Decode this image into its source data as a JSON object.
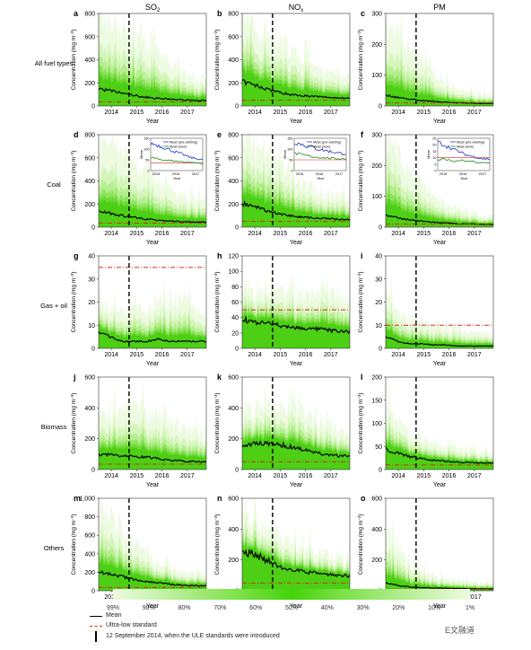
{
  "columns": [
    "SO",
    "NO",
    "PM"
  ],
  "column_subscript": "2",
  "column_subscript_x": "x",
  "rows": [
    "All fuel types",
    "Coal",
    "Gas + oil",
    "Biomass",
    "Others"
  ],
  "panel_letters": [
    "a",
    "b",
    "c",
    "d",
    "e",
    "f",
    "g",
    "h",
    "i",
    "j",
    "k",
    "l",
    "m",
    "n",
    "o"
  ],
  "ylabel": "Concentration (mg m",
  "ylabel_sup": "−3",
  "ylabel_close": ")",
  "xlabel": "Year",
  "years": [
    "2014",
    "2015",
    "2016",
    "2017"
  ],
  "legend": {
    "percentiles": [
      "99%",
      "90%",
      "80%",
      "70%",
      "60%",
      "50%",
      "40%",
      "30%",
      "20%",
      "10%",
      "1%"
    ],
    "mean": "Mean",
    "ulstandard": "Ultra-low standard",
    "event": "12 September 2014, when the ULE standards were introduced",
    "colors": {
      "mean": "#000000",
      "standard": "#d62a1e",
      "band_light": "#e9fbd9",
      "band_dark": "#44d30a"
    }
  },
  "inset": {
    "pre": "Mean (pre-existing)",
    "new": "Mean (new)",
    "ylabel": "Mean",
    "xlabel": "Year",
    "years": [
      "2015",
      "2016",
      "2017"
    ]
  },
  "watermark": "E文融道",
  "chart_data": [
    {
      "id": "a",
      "type": "area",
      "row": "All fuel types",
      "pollutant": "SO2",
      "ylim": [
        0,
        800
      ],
      "yticks": [
        0,
        200,
        400,
        600,
        800
      ],
      "standard": 35,
      "p99": [
        800,
        780,
        720,
        620,
        560,
        480,
        380,
        300,
        260,
        260
      ],
      "mean": [
        150,
        130,
        110,
        90,
        75,
        65,
        58,
        52,
        48,
        46
      ]
    },
    {
      "id": "b",
      "type": "area",
      "row": "All fuel types",
      "pollutant": "NOx",
      "ylim": [
        0,
        800
      ],
      "yticks": [
        0,
        200,
        400,
        600,
        800
      ],
      "standard": 50,
      "p99": [
        800,
        760,
        680,
        600,
        520,
        440,
        360,
        320,
        300,
        280
      ],
      "mean": [
        210,
        180,
        150,
        120,
        100,
        90,
        82,
        76,
        70,
        68
      ]
    },
    {
      "id": "c",
      "type": "area",
      "row": "All fuel types",
      "pollutant": "PM",
      "ylim": [
        0,
        300
      ],
      "yticks": [
        0,
        100,
        200,
        300
      ],
      "standard": 10,
      "p99": [
        270,
        250,
        200,
        150,
        110,
        80,
        60,
        45,
        40,
        40
      ],
      "mean": [
        35,
        28,
        22,
        18,
        15,
        12,
        10,
        9,
        8,
        8
      ]
    },
    {
      "id": "d",
      "type": "area",
      "row": "Coal",
      "pollutant": "SO2",
      "ylim": [
        0,
        800
      ],
      "yticks": [
        0,
        200,
        400,
        600,
        800
      ],
      "standard": 35,
      "p99": [
        780,
        760,
        700,
        600,
        520,
        440,
        340,
        280,
        240,
        240
      ],
      "mean": [
        145,
        120,
        100,
        85,
        70,
        60,
        52,
        48,
        44,
        42
      ],
      "inset_ylim": [
        0,
        150
      ],
      "inset_yticks": [
        0,
        50,
        100,
        150
      ],
      "inset_standard": 35,
      "inset_pre": [
        125,
        120,
        110,
        100,
        90,
        80,
        70,
        60,
        55,
        50
      ],
      "inset_new": [
        60,
        55,
        50,
        48,
        45,
        42,
        40,
        38,
        35,
        32
      ]
    },
    {
      "id": "e",
      "type": "area",
      "row": "Coal",
      "pollutant": "NOx",
      "ylim": [
        0,
        800
      ],
      "yticks": [
        0,
        200,
        400,
        600,
        800
      ],
      "standard": 50,
      "p99": [
        780,
        740,
        660,
        580,
        500,
        420,
        340,
        300,
        280,
        260
      ],
      "mean": [
        205,
        175,
        145,
        118,
        98,
        88,
        80,
        74,
        68,
        66
      ],
      "inset_ylim": [
        0,
        150
      ],
      "inset_yticks": [
        0,
        50,
        100,
        150
      ],
      "inset_standard": 50,
      "inset_pre": [
        130,
        125,
        115,
        110,
        100,
        95,
        90,
        85,
        80,
        78
      ],
      "inset_new": [
        80,
        75,
        70,
        65,
        62,
        60,
        58,
        56,
        55,
        55
      ]
    },
    {
      "id": "f",
      "type": "area",
      "row": "Coal",
      "pollutant": "PM",
      "ylim": [
        0,
        300
      ],
      "yticks": [
        0,
        100,
        200,
        300
      ],
      "standard": 10,
      "p99": [
        280,
        250,
        200,
        150,
        110,
        80,
        60,
        45,
        40,
        40
      ],
      "mean": [
        38,
        30,
        24,
        19,
        16,
        13,
        11,
        10,
        9,
        9
      ],
      "inset_ylim": [
        0,
        25
      ],
      "inset_yticks": [
        0,
        5,
        10,
        15,
        20,
        25
      ],
      "inset_standard": 10,
      "inset_pre": [
        22,
        20,
        18,
        16,
        14,
        12,
        11,
        10,
        9,
        9
      ],
      "inset_new": [
        8,
        9,
        8,
        7,
        8,
        7,
        7,
        6,
        6,
        6
      ]
    },
    {
      "id": "g",
      "type": "area",
      "row": "Gas + oil",
      "pollutant": "SO2",
      "ylim": [
        0,
        40
      ],
      "yticks": [
        0,
        10,
        20,
        30,
        40
      ],
      "standard": 35,
      "p99": [
        20,
        18,
        16,
        22,
        18,
        25,
        20,
        24,
        18,
        16
      ],
      "mean": [
        7,
        5,
        3,
        3,
        3,
        4,
        3,
        3,
        3,
        3
      ]
    },
    {
      "id": "h",
      "type": "area",
      "row": "Gas + oil",
      "pollutant": "NOx",
      "ylim": [
        0,
        120
      ],
      "yticks": [
        0,
        20,
        40,
        60,
        80,
        100,
        120
      ],
      "standard": 50,
      "p99": [
        90,
        80,
        80,
        85,
        70,
        75,
        70,
        80,
        70,
        65
      ],
      "mean": [
        38,
        34,
        32,
        30,
        28,
        26,
        25,
        24,
        22,
        22
      ]
    },
    {
      "id": "i",
      "type": "area",
      "row": "Gas + oil",
      "pollutant": "PM",
      "ylim": [
        0,
        40
      ],
      "yticks": [
        0,
        10,
        20,
        30,
        40
      ],
      "standard": 10,
      "p99": [
        25,
        18,
        12,
        12,
        10,
        10,
        8,
        8,
        7,
        7
      ],
      "mean": [
        5,
        3,
        2,
        2,
        1.5,
        1.5,
        1,
        1,
        1,
        1
      ]
    },
    {
      "id": "j",
      "type": "area",
      "row": "Biomass",
      "pollutant": "SO2",
      "ylim": [
        0,
        600
      ],
      "yticks": [
        0,
        200,
        400,
        600
      ],
      "standard": 35,
      "p99": [
        380,
        350,
        420,
        480,
        400,
        380,
        350,
        300,
        260,
        220
      ],
      "mean": [
        100,
        95,
        90,
        85,
        80,
        70,
        60,
        55,
        50,
        48
      ]
    },
    {
      "id": "k",
      "type": "area",
      "row": "Biomass",
      "pollutant": "NOx",
      "ylim": [
        0,
        600
      ],
      "yticks": [
        0,
        200,
        400,
        600
      ],
      "standard": 50,
      "p99": [
        420,
        430,
        450,
        440,
        420,
        400,
        360,
        320,
        280,
        250
      ],
      "mean": [
        160,
        165,
        170,
        160,
        150,
        130,
        110,
        100,
        90,
        85
      ]
    },
    {
      "id": "l",
      "type": "area",
      "row": "Biomass",
      "pollutant": "PM",
      "ylim": [
        0,
        200
      ],
      "yticks": [
        0,
        50,
        100,
        150,
        200
      ],
      "standard": 10,
      "p99": [
        150,
        110,
        80,
        70,
        60,
        55,
        50,
        45,
        40,
        38
      ],
      "mean": [
        45,
        35,
        28,
        24,
        20,
        18,
        16,
        15,
        14,
        14
      ]
    },
    {
      "id": "m",
      "type": "area",
      "row": "Others",
      "pollutant": "SO2",
      "ylim": [
        0,
        1000
      ],
      "yticks": [
        0,
        200,
        400,
        600,
        800,
        1000
      ],
      "standard": 35,
      "p99": [
        950,
        850,
        700,
        550,
        420,
        320,
        260,
        220,
        200,
        180
      ],
      "mean": [
        200,
        180,
        150,
        120,
        100,
        85,
        70,
        60,
        55,
        52
      ]
    },
    {
      "id": "n",
      "type": "area",
      "row": "Others",
      "pollutant": "NOx",
      "ylim": [
        0,
        600
      ],
      "yticks": [
        0,
        200,
        400,
        600
      ],
      "standard": 50,
      "p99": [
        500,
        480,
        430,
        380,
        330,
        300,
        270,
        250,
        230,
        220
      ],
      "mean": [
        250,
        240,
        200,
        160,
        140,
        125,
        115,
        105,
        100,
        98
      ]
    },
    {
      "id": "o",
      "type": "area",
      "row": "Others",
      "pollutant": "PM",
      "ylim": [
        0,
        600
      ],
      "yticks": [
        0,
        200,
        400,
        600
      ],
      "standard": 10,
      "p99": [
        450,
        300,
        180,
        130,
        100,
        80,
        70,
        60,
        55,
        50
      ],
      "mean": [
        50,
        35,
        25,
        20,
        18,
        16,
        14,
        13,
        12,
        12
      ]
    }
  ]
}
